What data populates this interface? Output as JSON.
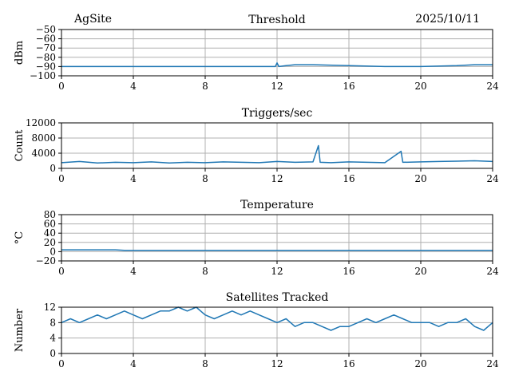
{
  "header": {
    "site": "AgSite",
    "date": "2025/10/11"
  },
  "colors": {
    "series": "#1f77b4",
    "grid": "#b0b0b0"
  },
  "chart_data": [
    {
      "type": "line",
      "title": "Threshold",
      "ylabel": "dBm",
      "xlim": [
        0,
        24
      ],
      "ylim": [
        -100,
        -50
      ],
      "xticks": [
        0,
        4,
        8,
        12,
        16,
        20,
        24
      ],
      "yticks": [
        -100,
        -90,
        -80,
        -70,
        -60,
        -50
      ],
      "grid": true,
      "series": [
        {
          "x": [
            0,
            2,
            4,
            6,
            8,
            10,
            11.9,
            12,
            12.1,
            12.5,
            13,
            14,
            16,
            18,
            20,
            22,
            23,
            24
          ],
          "values": [
            -90,
            -90,
            -90,
            -90,
            -90,
            -90,
            -90,
            -86,
            -90,
            -89,
            -88,
            -88,
            -89,
            -90,
            -90,
            -89,
            -88,
            -88
          ]
        }
      ]
    },
    {
      "type": "line",
      "title": "Triggers/sec",
      "ylabel": "Count",
      "xlim": [
        0,
        24
      ],
      "ylim": [
        0,
        12000
      ],
      "xticks": [
        0,
        4,
        8,
        12,
        16,
        20,
        24
      ],
      "yticks": [
        0,
        4000,
        8000,
        12000
      ],
      "grid": true,
      "series": [
        {
          "x": [
            0,
            1,
            2,
            3,
            4,
            5,
            6,
            7,
            8,
            9,
            10,
            11,
            12,
            13,
            14,
            14.3,
            14.4,
            15,
            16,
            17,
            18,
            18.9,
            19,
            20,
            21,
            22,
            23,
            24
          ],
          "values": [
            1500,
            1800,
            1400,
            1600,
            1500,
            1700,
            1400,
            1600,
            1500,
            1700,
            1600,
            1500,
            1800,
            1600,
            1700,
            6000,
            1600,
            1500,
            1700,
            1600,
            1500,
            4500,
            1600,
            1700,
            1800,
            1900,
            2000,
            1800
          ]
        }
      ]
    },
    {
      "type": "line",
      "title": "Temperature",
      "ylabel": "°C",
      "xlim": [
        0,
        24
      ],
      "ylim": [
        -20,
        80
      ],
      "xticks": [
        0,
        4,
        8,
        12,
        16,
        20,
        24
      ],
      "yticks": [
        -20,
        0,
        20,
        40,
        60,
        80
      ],
      "grid": true,
      "series": [
        {
          "x": [
            0,
            3,
            3.5,
            6,
            12,
            18,
            24
          ],
          "values": [
            4,
            4,
            3,
            3,
            3,
            3,
            3
          ]
        }
      ]
    },
    {
      "type": "line",
      "title": "Satellites Tracked",
      "ylabel": "Number",
      "xlim": [
        0,
        24
      ],
      "ylim": [
        0,
        12
      ],
      "xticks": [
        0,
        4,
        8,
        12,
        16,
        20,
        24
      ],
      "yticks": [
        0,
        4,
        8,
        12
      ],
      "grid": true,
      "series": [
        {
          "x": [
            0,
            0.5,
            1,
            1.5,
            2,
            2.5,
            3,
            3.5,
            4,
            4.5,
            5,
            5.5,
            6,
            6.5,
            7,
            7.5,
            8,
            8.5,
            9,
            9.5,
            10,
            10.5,
            11,
            11.5,
            12,
            12.5,
            13,
            13.5,
            14,
            14.5,
            15,
            15.5,
            16,
            16.5,
            17,
            17.5,
            18,
            18.5,
            19,
            19.5,
            20,
            20.5,
            21,
            21.5,
            22,
            22.5,
            23,
            23.5,
            24
          ],
          "values": [
            8,
            9,
            8,
            9,
            10,
            9,
            10,
            11,
            10,
            9,
            10,
            11,
            11,
            12,
            11,
            12,
            10,
            9,
            10,
            11,
            10,
            11,
            10,
            9,
            8,
            9,
            7,
            8,
            8,
            7,
            6,
            7,
            7,
            8,
            9,
            8,
            9,
            10,
            9,
            8,
            8,
            8,
            7,
            8,
            8,
            9,
            7,
            6,
            8
          ]
        }
      ]
    }
  ]
}
